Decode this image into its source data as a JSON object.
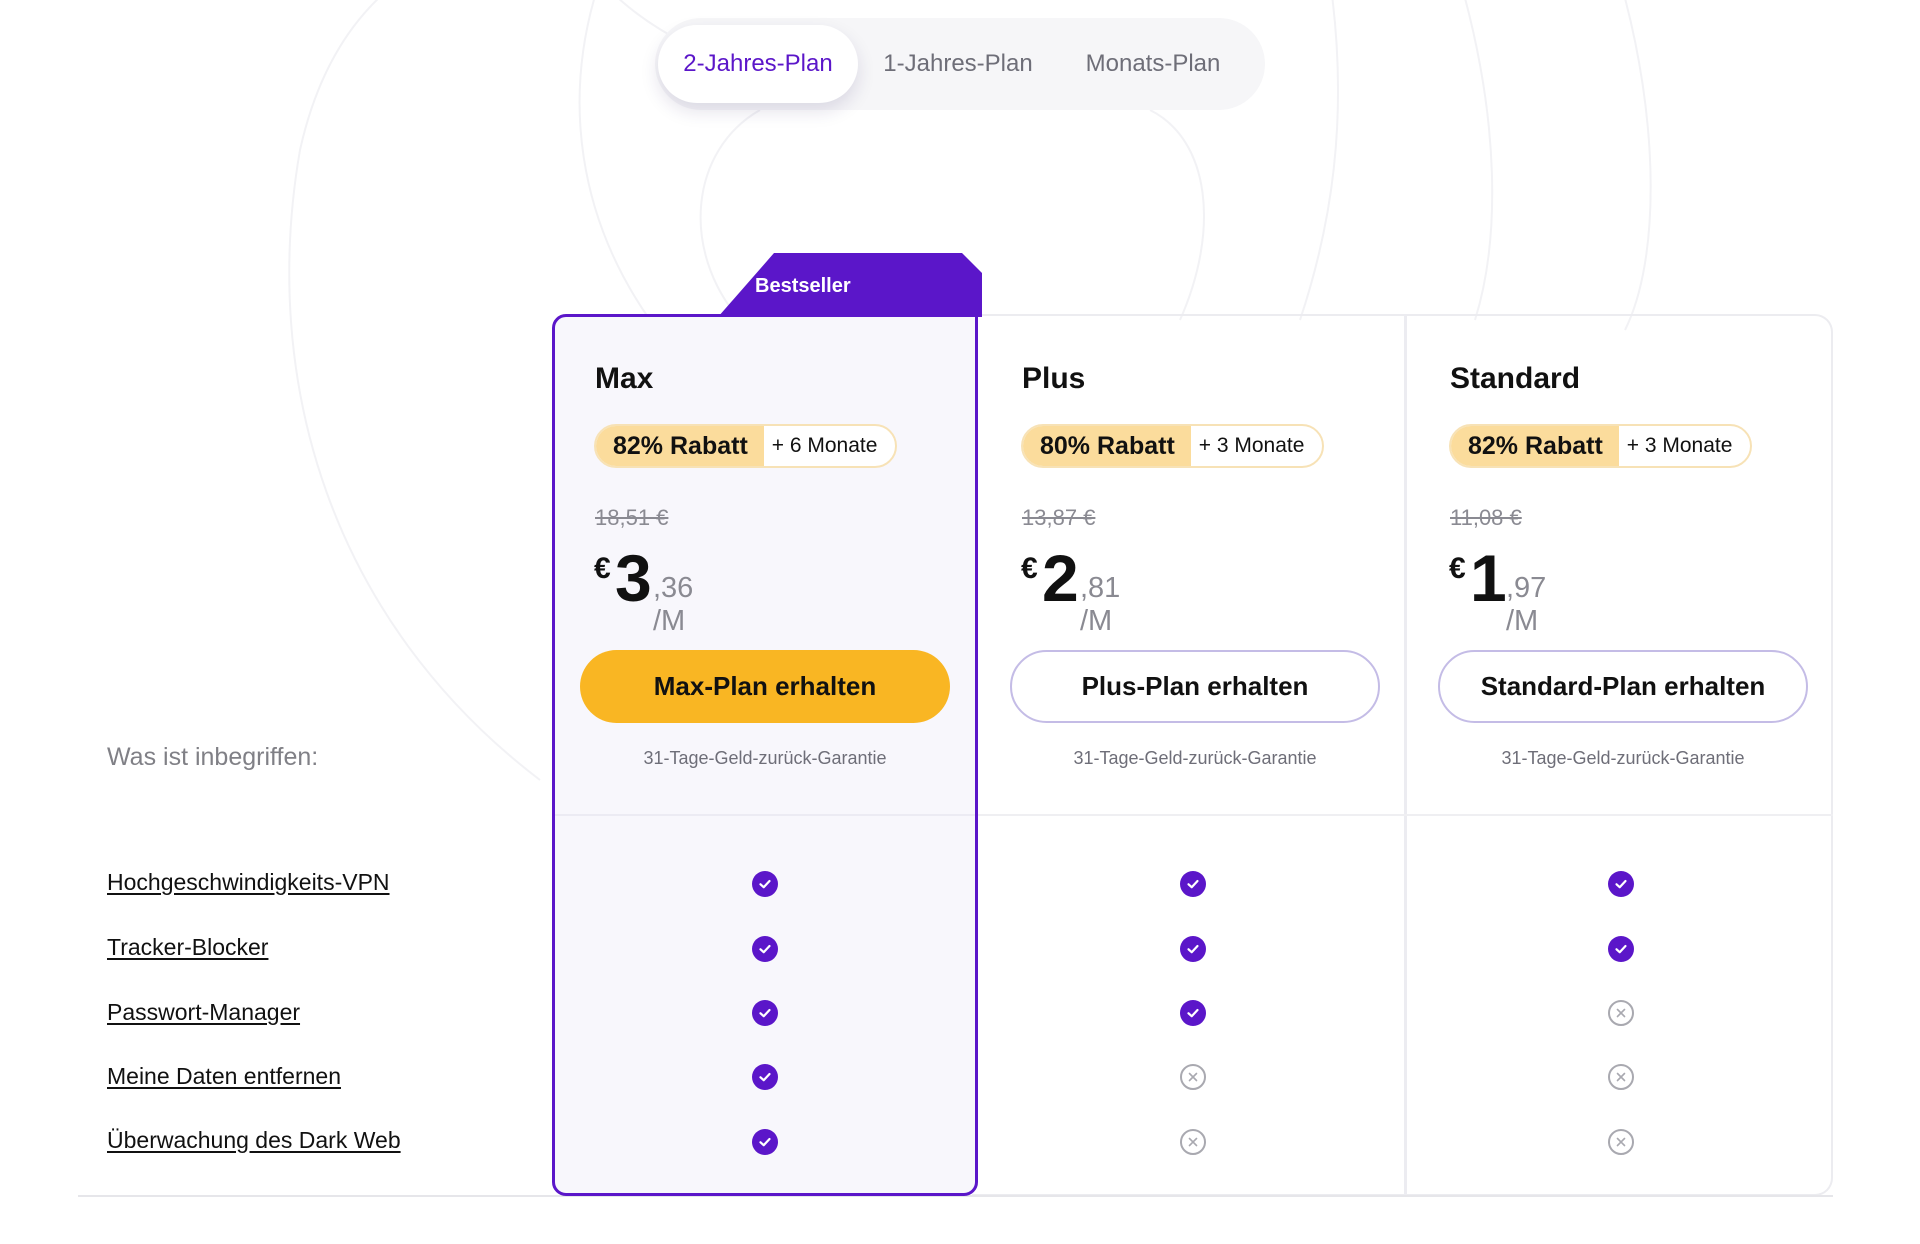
{
  "period_tabs": [
    {
      "label": "2-Jahres-Plan",
      "active": true
    },
    {
      "label": "1-Jahres-Plan",
      "active": false
    },
    {
      "label": "Monats-Plan",
      "active": false
    }
  ],
  "bestseller_label": "Bestseller",
  "included_heading": "Was ist inbegriffen:",
  "plans": [
    {
      "name": "Max",
      "discount": "82% Rabatt",
      "extra": "+ 6 Monate",
      "old_price": "18,51 €",
      "currency": "€",
      "price_int": "3",
      "price_cents": ",36",
      "per": "/M",
      "cta": "Max-Plan erhalten",
      "guarantee": "31-Tage-Geld-zurück-Garantie"
    },
    {
      "name": "Plus",
      "discount": "80% Rabatt",
      "extra": "+ 3 Monate",
      "old_price": "13,87 €",
      "currency": "€",
      "price_int": "2",
      "price_cents": ",81",
      "per": "/M",
      "cta": "Plus-Plan erhalten",
      "guarantee": "31-Tage-Geld-zurück-Garantie"
    },
    {
      "name": "Standard",
      "discount": "82% Rabatt",
      "extra": "+ 3 Monate",
      "old_price": "11,08 €",
      "currency": "€",
      "price_int": "1",
      "price_cents": ",97",
      "per": "/M",
      "cta": "Standard-Plan erhalten",
      "guarantee": "31-Tage-Geld-zurück-Garantie"
    }
  ],
  "features": [
    {
      "name": "Hochgeschwindigkeits-VPN",
      "included": [
        true,
        true,
        true
      ]
    },
    {
      "name": "Tracker-Blocker",
      "included": [
        true,
        true,
        true
      ]
    },
    {
      "name": "Passwort-Manager",
      "included": [
        true,
        true,
        false
      ]
    },
    {
      "name": "Meine Daten entfernen",
      "included": [
        true,
        false,
        false
      ]
    },
    {
      "name": "Überwachung des Dark Web",
      "included": [
        true,
        false,
        false
      ]
    }
  ],
  "icons": {
    "included": "check-circle-icon",
    "not_included": "x-circle-icon"
  },
  "colors": {
    "accent": "#5b16c9",
    "cta": "#f9b623",
    "badge": "#fbdc9c"
  }
}
